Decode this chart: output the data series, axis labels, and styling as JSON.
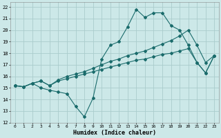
{
  "title": "",
  "xlabel": "Humidex (Indice chaleur)",
  "background_color": "#cce8e8",
  "grid_color": "#aacccc",
  "line_color": "#1a6b6b",
  "xlim": [
    -0.5,
    23.5
  ],
  "ylim": [
    12,
    22.4
  ],
  "xticks": [
    0,
    1,
    2,
    3,
    4,
    5,
    6,
    7,
    8,
    9,
    10,
    11,
    12,
    13,
    14,
    15,
    16,
    17,
    18,
    19,
    20,
    21,
    22,
    23
  ],
  "yticks": [
    12,
    13,
    14,
    15,
    16,
    17,
    18,
    19,
    20,
    21,
    22
  ],
  "line1_x": [
    0,
    1,
    2,
    3,
    4,
    5,
    6,
    7,
    8,
    9,
    10,
    11,
    12,
    13,
    14,
    15,
    16,
    17,
    18,
    19,
    20,
    21,
    22,
    23
  ],
  "line1_y": [
    15.2,
    15.1,
    15.4,
    15.0,
    14.8,
    14.65,
    14.5,
    13.4,
    12.5,
    14.1,
    17.5,
    18.7,
    19.0,
    20.3,
    21.8,
    21.1,
    21.5,
    21.5,
    20.4,
    20.0,
    18.7,
    17.2,
    16.3,
    17.8
  ],
  "line2_x": [
    0,
    1,
    2,
    3,
    4,
    5,
    6,
    7,
    8,
    9,
    10,
    11,
    12,
    13,
    14,
    15,
    16,
    17,
    18,
    19,
    20,
    21,
    22,
    23
  ],
  "line2_y": [
    15.2,
    15.1,
    15.4,
    15.6,
    15.2,
    15.7,
    16.0,
    16.2,
    16.4,
    16.7,
    17.0,
    17.3,
    17.5,
    17.8,
    18.0,
    18.2,
    18.5,
    18.8,
    19.1,
    19.5,
    20.0,
    18.7,
    17.2,
    17.8
  ],
  "line3_x": [
    0,
    1,
    2,
    3,
    4,
    5,
    6,
    7,
    8,
    9,
    10,
    11,
    12,
    13,
    14,
    15,
    16,
    17,
    18,
    19,
    20,
    21,
    22,
    23
  ],
  "line3_y": [
    15.2,
    15.1,
    15.4,
    15.6,
    15.2,
    15.6,
    15.8,
    16.0,
    16.2,
    16.4,
    16.6,
    16.8,
    17.0,
    17.2,
    17.4,
    17.5,
    17.7,
    17.9,
    18.0,
    18.2,
    18.4,
    17.2,
    16.3,
    17.8
  ]
}
